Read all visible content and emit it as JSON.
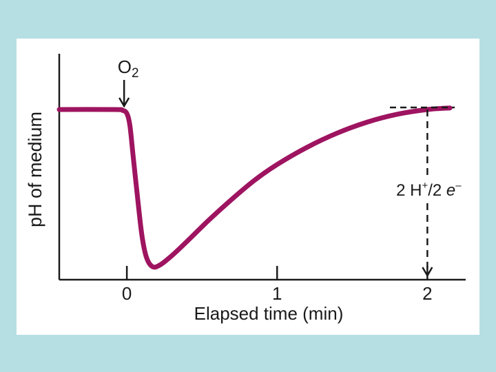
{
  "chart_data": {
    "type": "line",
    "ylabel": "pH of medium",
    "xlabel": "Elapsed time (min)",
    "xlim": [
      -0.45,
      2.2
    ],
    "ylim": [
      0,
      1.0
    ],
    "x_ticks": [
      0,
      1,
      2
    ],
    "x_tick_labels": [
      "0",
      "1",
      "2"
    ],
    "y_ticks_shown": false,
    "grid": false,
    "series": [
      {
        "color": "#9e1460",
        "points": [
          [
            -0.45,
            1.0
          ],
          [
            -0.08,
            1.0
          ],
          [
            -0.03,
            0.995
          ],
          [
            0.0,
            0.975
          ],
          [
            0.02,
            0.9
          ],
          [
            0.04,
            0.72
          ],
          [
            0.07,
            0.45
          ],
          [
            0.1,
            0.2
          ],
          [
            0.13,
            0.06
          ],
          [
            0.17,
            0.0
          ],
          [
            0.22,
            0.01
          ],
          [
            0.3,
            0.07
          ],
          [
            0.4,
            0.16
          ],
          [
            0.55,
            0.3
          ],
          [
            0.7,
            0.43
          ],
          [
            0.85,
            0.55
          ],
          [
            1.0,
            0.65
          ],
          [
            1.2,
            0.76
          ],
          [
            1.4,
            0.85
          ],
          [
            1.6,
            0.92
          ],
          [
            1.8,
            0.97
          ],
          [
            2.0,
            1.0
          ],
          [
            2.15,
            1.01
          ]
        ]
      }
    ],
    "annotations": {
      "o2": {
        "base": "O",
        "sub": "2",
        "x": 0.0
      },
      "ratio": {
        "part1": "2 H",
        "sup": "+",
        "part2": "/2 ",
        "italic": "e",
        "sup2": "–",
        "x": 2.0
      }
    },
    "colors": {
      "curve": "#9e1460",
      "background": "#b6dfe3",
      "panel": "#ffffff",
      "ink": "#1a1a1a"
    }
  }
}
